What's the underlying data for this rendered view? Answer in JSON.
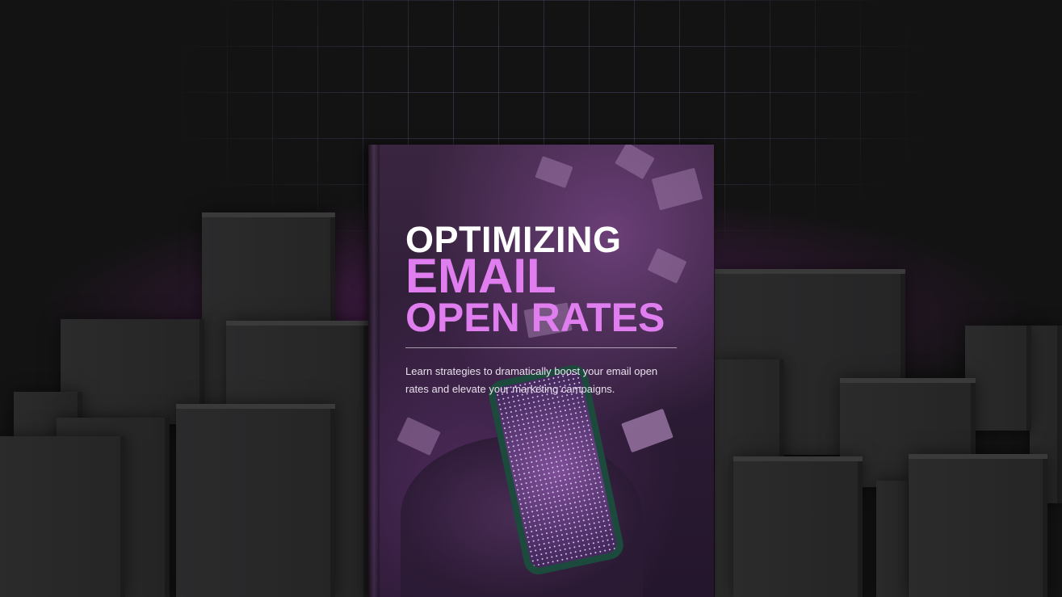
{
  "book": {
    "title_line1": "OPTIMIZING",
    "title_line2": "EMAIL",
    "title_line3": "OPEN RATES",
    "description": "Learn strategies to dramatically boost your email open rates and elevate your marketing campaigns."
  },
  "colors": {
    "background": "#141314",
    "accent": "#e07ef0",
    "block": "#2b2b2c"
  }
}
